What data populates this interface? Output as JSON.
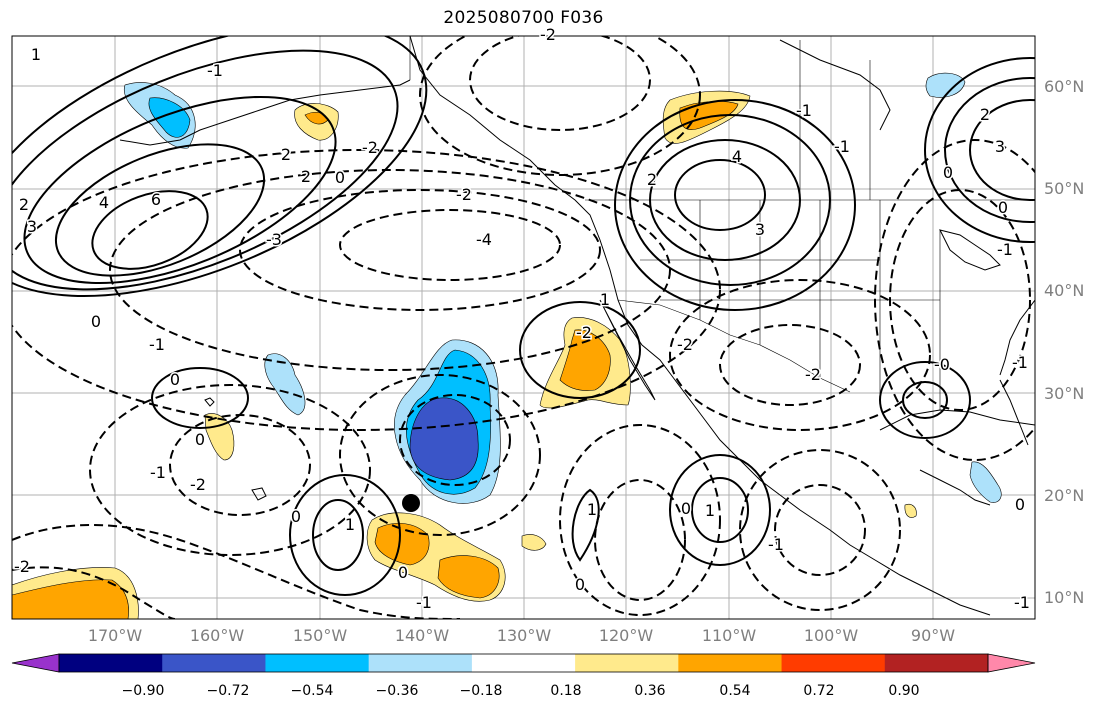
{
  "title": "2025080700 F036",
  "lat_labels": [
    "60°N",
    "50°N",
    "40°N",
    "30°N",
    "20°N",
    "10°N"
  ],
  "lon_labels": [
    "170°W",
    "160°W",
    "150°W",
    "140°W",
    "130°W",
    "120°W",
    "110°W",
    "100°W",
    "90°W"
  ],
  "contour_labels": [
    "1",
    "2",
    "3",
    "4",
    "6",
    "2",
    "0",
    "-1",
    "-2",
    "-3",
    "-4",
    "2",
    "-2",
    "4",
    "3",
    "2",
    "1",
    "0",
    "-1",
    "-2",
    "0",
    "-1",
    "-2",
    "0",
    "-1",
    "-2",
    "1",
    "0",
    "-1",
    "0",
    "1",
    "-1",
    "-2",
    "0",
    "-2",
    "0",
    "1",
    "-1",
    "-1",
    "3",
    "2",
    "0",
    "-1",
    "-2",
    "0",
    "-0",
    "0",
    "-1"
  ],
  "colorbar": {
    "colors": [
      "#9932CC",
      "#000080",
      "#3A55C8",
      "#00BFFF",
      "#ADE1FA",
      "#FFFFFF",
      "#FFEA8C",
      "#FFA500",
      "#FF3C00",
      "#B22222",
      "#FF88AA"
    ],
    "tick_labels": [
      "−0.90",
      "−0.72",
      "−0.54",
      "−0.36",
      "−0.18",
      "0.18",
      "0.36",
      "0.54",
      "0.72",
      "0.90"
    ]
  },
  "storm_marker": "black-circle"
}
